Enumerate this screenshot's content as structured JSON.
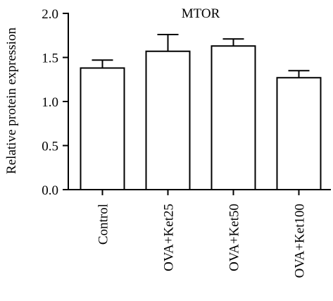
{
  "chart_data": {
    "type": "bar",
    "title": "MTOR",
    "ylabel": "Relative protein expression",
    "xlabel": "",
    "categories": [
      "Control",
      "OVA+Ket25",
      "OVA+Ket50",
      "OVA+Ket100"
    ],
    "values": [
      1.38,
      1.57,
      1.63,
      1.27
    ],
    "errors": [
      0.09,
      0.19,
      0.08,
      0.08
    ],
    "ylim": [
      0.0,
      2.0
    ],
    "yticks": [
      "0.0",
      "0.5",
      "1.0",
      "1.5",
      "2.0"
    ],
    "grid": false,
    "legend": "none",
    "colors": {
      "bar_fill": "#ffffff",
      "stroke": "#000000"
    }
  }
}
